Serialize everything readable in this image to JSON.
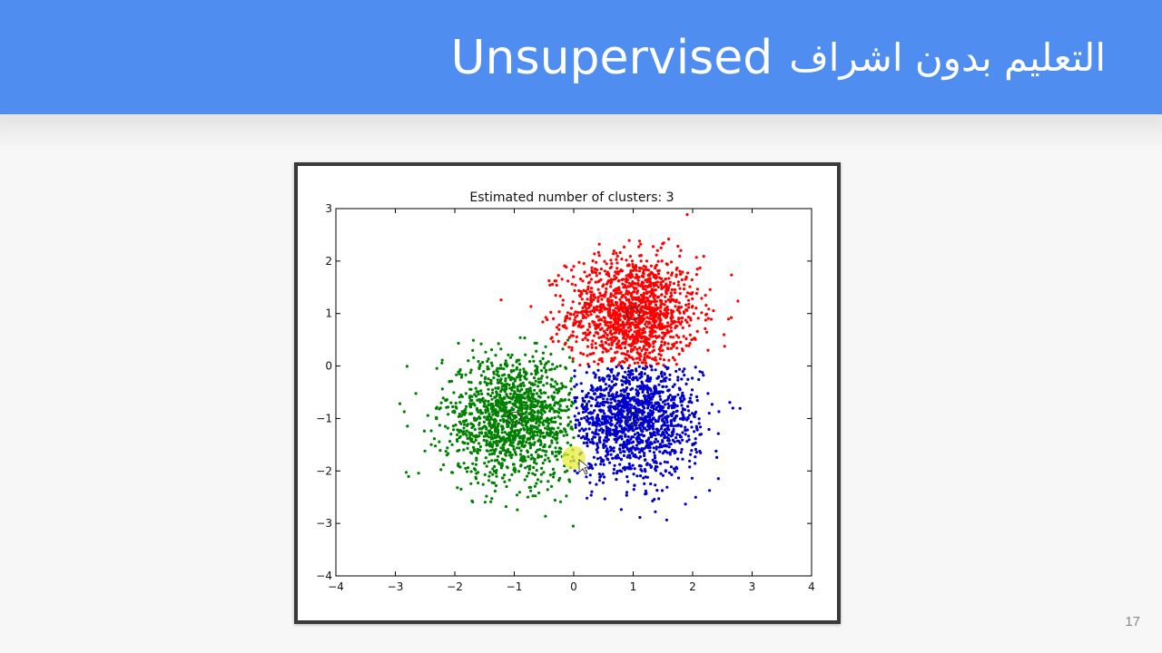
{
  "slide": {
    "title_english": "Unsupervised",
    "title_arabic": "التعليم بدون اشراف",
    "page_number": "17"
  },
  "chart_data": {
    "type": "scatter",
    "title": "Estimated number of clusters: 3",
    "xlabel": "",
    "ylabel": "",
    "xlim": [
      -4,
      4
    ],
    "ylim": [
      -4,
      3
    ],
    "xticks": [
      -4,
      -3,
      -2,
      -1,
      0,
      1,
      2,
      3,
      4
    ],
    "yticks": [
      -4,
      -3,
      -2,
      -1,
      0,
      1,
      2,
      3
    ],
    "xtick_labels": [
      "−4",
      "−3",
      "−2",
      "−1",
      "0",
      "1",
      "2",
      "3",
      "4"
    ],
    "ytick_labels": [
      "−4",
      "−3",
      "−2",
      "−1",
      "0",
      "1",
      "2",
      "3"
    ],
    "grid": false,
    "legend": "none",
    "cursor_highlight": {
      "x": 0.0,
      "y": -1.75,
      "color": "#e8ec3a"
    },
    "clusters": [
      {
        "color": "#ff0000",
        "center": [
          1.0,
          1.0
        ],
        "spread": 0.55,
        "count": 1400,
        "region": "top"
      },
      {
        "color": "#008000",
        "center": [
          -1.0,
          -1.0
        ],
        "spread": 0.6,
        "count": 1400,
        "region": "left"
      },
      {
        "color": "#0000cc",
        "center": [
          1.0,
          -1.0
        ],
        "spread": 0.55,
        "count": 1400,
        "region": "right"
      }
    ]
  }
}
